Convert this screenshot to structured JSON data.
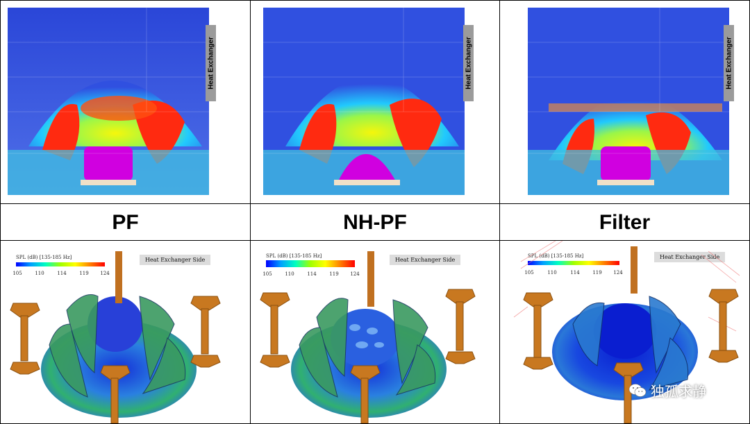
{
  "panels": [
    {
      "label": "PF",
      "tag": "Heat Exchanger",
      "side_tag": "Heat Exchanger Side"
    },
    {
      "label": "NH-PF",
      "tag": "Heat Exchanger",
      "side_tag": "Heat Exchanger Side"
    },
    {
      "label": "Filter",
      "tag": "Heat Exchanger",
      "side_tag": "Heat Exchanger Side"
    }
  ],
  "colorbar": {
    "title": "SPL (dB) [135-185 Hz]",
    "ticks": [
      "105",
      "110",
      "114",
      "119",
      "124"
    ],
    "colors": [
      "#0000ff",
      "#00a0ff",
      "#00ffc0",
      "#a0ff00",
      "#ffff00",
      "#ff8000",
      "#ff0000"
    ]
  },
  "watermark": {
    "text": "独孤求静",
    "icon": "wechat-icon"
  }
}
